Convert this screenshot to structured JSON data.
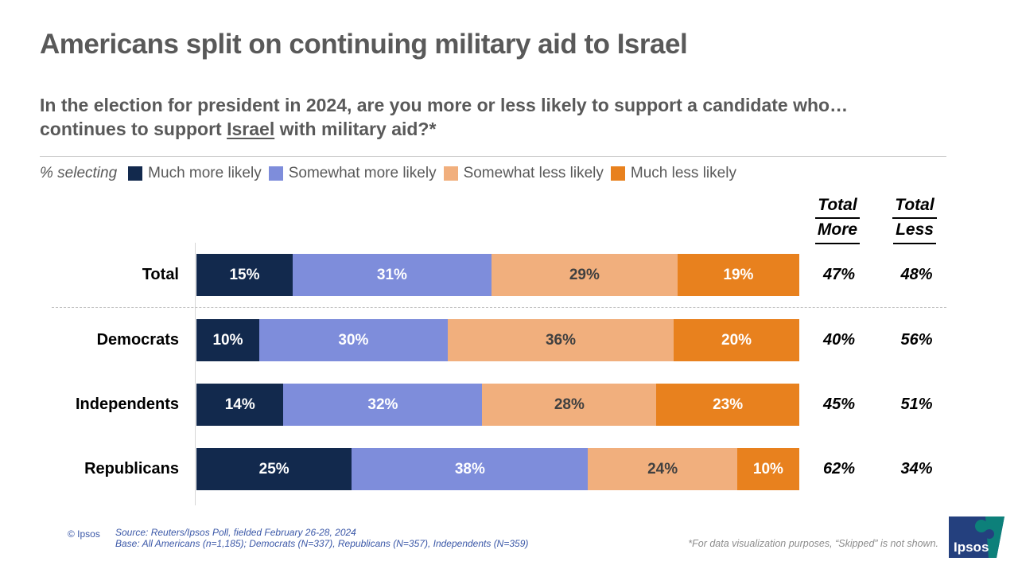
{
  "title": "Americans split on continuing military aid to Israel",
  "subtitle": {
    "line1": "In the election for president in 2024, are you more or less likely to support a candidate who…",
    "line2_pre": "continues to support ",
    "underlined": "Israel",
    "line2_post": " with military aid?*"
  },
  "legend": {
    "prefix": "% selecting",
    "items": [
      {
        "label": "Much more likely",
        "color": "#12294D",
        "label_color": "#FFFFFF"
      },
      {
        "label": "Somewhat more likely",
        "color": "#7E8DDB",
        "label_color": "#FFFFFF"
      },
      {
        "label": "Somewhat less likely",
        "color": "#F1AF7D",
        "label_color": "#404040"
      },
      {
        "label": "Much less likely",
        "color": "#E8811E",
        "label_color": "#FFFFFF"
      }
    ]
  },
  "headers": {
    "more_line1": "Total",
    "more_line2": "More",
    "less_line1": "Total",
    "less_line2": "Less"
  },
  "chart_data": {
    "type": "bar",
    "stacked": true,
    "orientation": "horizontal",
    "categories": [
      "Total",
      "Democrats",
      "Independents",
      "Republicans"
    ],
    "series": [
      {
        "name": "Much more likely",
        "color": "#12294D",
        "label_color": "#FFFFFF",
        "values": [
          15,
          10,
          14,
          25
        ]
      },
      {
        "name": "Somewhat more likely",
        "color": "#7E8DDB",
        "label_color": "#FFFFFF",
        "values": [
          31,
          30,
          32,
          38
        ]
      },
      {
        "name": "Somewhat less likely",
        "color": "#F1AF7D",
        "label_color": "#404040",
        "values": [
          29,
          36,
          28,
          24
        ]
      },
      {
        "name": "Much less likely",
        "color": "#E8811E",
        "label_color": "#FFFFFF",
        "values": [
          19,
          20,
          23,
          10
        ]
      }
    ],
    "totals": {
      "more": [
        47,
        40,
        45,
        62
      ],
      "less": [
        48,
        56,
        51,
        34
      ]
    },
    "value_suffix": "%",
    "title": "In the election for president in 2024, are you more or less likely to support a candidate who… continues to support Israel with military aid?",
    "legend_position": "top"
  },
  "footer": {
    "copyright": "© Ipsos",
    "source_line1": "Source: Reuters/Ipsos Poll, fielded February 26-28, 2024",
    "source_line2": "Base: All Americans (n=1,185); Democrats (N=337), Republicans (N=357), Independents (N=359)",
    "footnote": "*For data visualization purposes, “Skipped” is not shown.",
    "logo_text": "Ipsos"
  }
}
